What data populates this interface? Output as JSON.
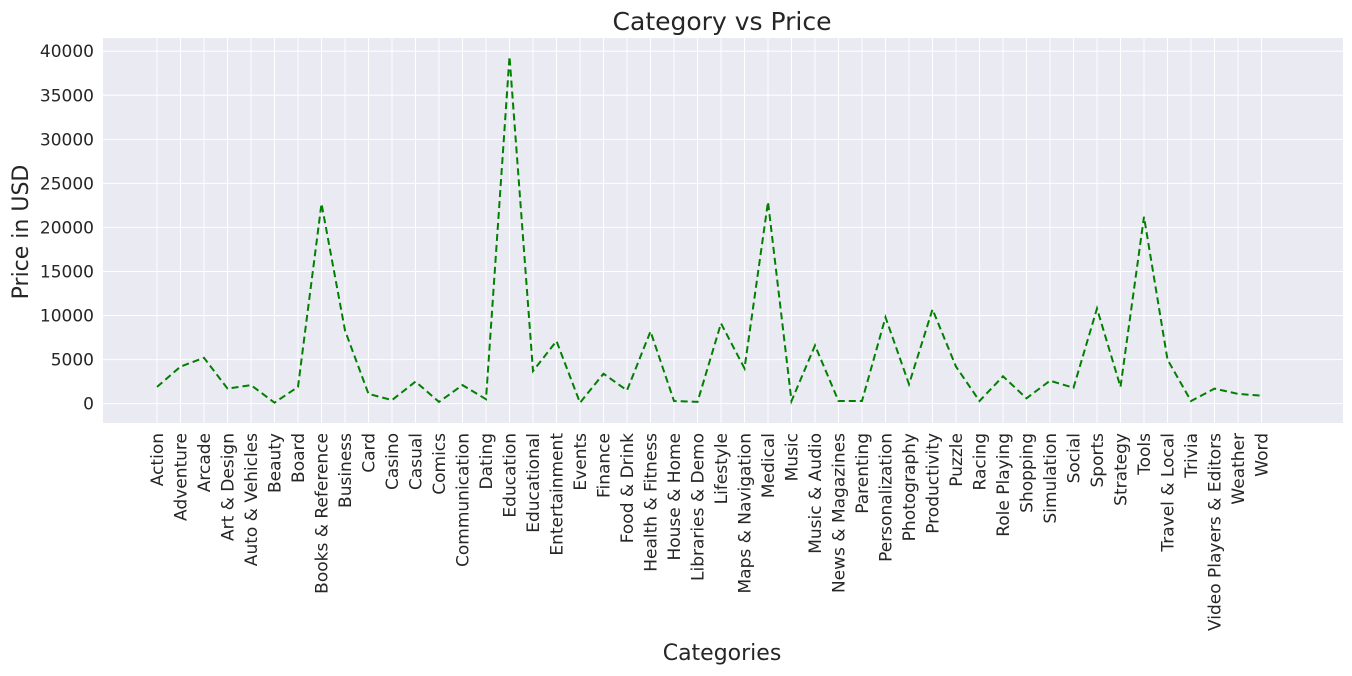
{
  "chart_data": {
    "type": "line",
    "title": "Category vs Price",
    "xlabel": "Categories",
    "ylabel": "Price in USD",
    "ylim": [
      -2200,
      41500
    ],
    "yticks": [
      0,
      5000,
      10000,
      15000,
      20000,
      25000,
      30000,
      35000,
      40000
    ],
    "grid": true,
    "line_style": "dashed",
    "line_color": "#008000",
    "background_color": "#eaeaf2",
    "categories": [
      "Action",
      "Adventure",
      "Arcade",
      "Art & Design",
      "Auto & Vehicles",
      "Beauty",
      "Board",
      "Books & Reference",
      "Business",
      "Card",
      "Casino",
      "Casual",
      "Comics",
      "Communication",
      "Dating",
      "Education",
      "Educational",
      "Entertainment",
      "Events",
      "Finance",
      "Food & Drink",
      "Health & Fitness",
      "House & Home",
      "Libraries & Demo",
      "Lifestyle",
      "Maps & Navigation",
      "Medical",
      "Music",
      "Music & Audio",
      "News & Magazines",
      "Parenting",
      "Personalization",
      "Photography",
      "Productivity",
      "Puzzle",
      "Racing",
      "Role Playing",
      "Shopping",
      "Simulation",
      "Social",
      "Sports",
      "Strategy",
      "Tools",
      "Travel & Local",
      "Trivia",
      "Video Players & Editors",
      "Weather",
      "Word"
    ],
    "series": [
      {
        "values": [
          1900,
          4200,
          5200,
          1700,
          2100,
          100,
          1900,
          22700,
          8300,
          1100,
          400,
          2500,
          200,
          2100,
          500,
          39400,
          3700,
          7100,
          100,
          3400,
          1500,
          8200,
          300,
          200,
          9100,
          4000,
          22900,
          300,
          6600,
          300,
          300,
          9800,
          2200,
          10700,
          4200,
          300,
          3100,
          600,
          2600,
          1800,
          10800,
          1900,
          21200,
          5000,
          300,
          1700,
          1100,
          900
        ]
      }
    ]
  }
}
